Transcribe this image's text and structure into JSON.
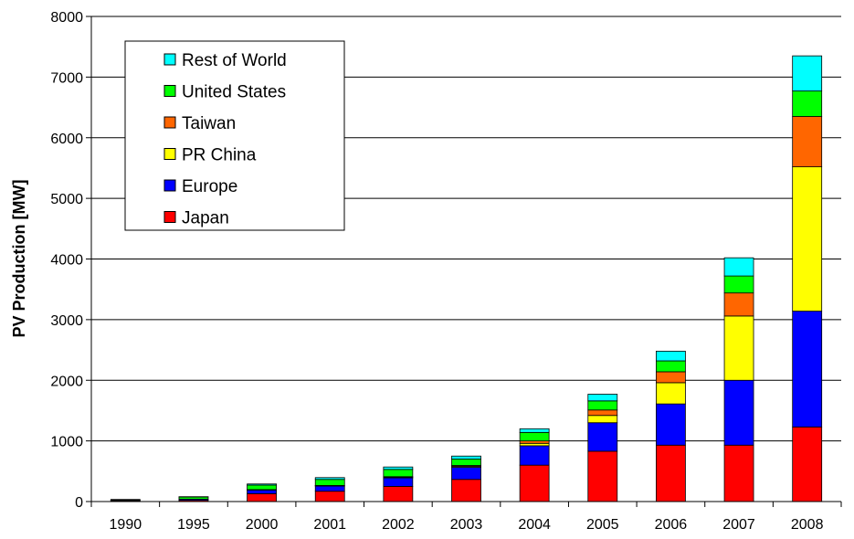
{
  "chart_data": {
    "type": "bar",
    "stacked": true,
    "title": "",
    "xlabel": "",
    "ylabel": "PV Production [MW]",
    "ylim": [
      0,
      8000
    ],
    "yticks": [
      0,
      1000,
      2000,
      3000,
      4000,
      5000,
      6000,
      7000,
      8000
    ],
    "grid": true,
    "legend_position": "top-left",
    "categories": [
      "1990",
      "1995",
      "2000",
      "2001",
      "2002",
      "2003",
      "2004",
      "2005",
      "2006",
      "2007",
      "2008"
    ],
    "series": [
      {
        "name": "Japan",
        "color": "#ff0000",
        "values": [
          15,
          20,
          130,
          170,
          250,
          365,
          600,
          830,
          930,
          930,
          1230
        ]
      },
      {
        "name": "Europe",
        "color": "#0000ff",
        "values": [
          10,
          20,
          60,
          85,
          140,
          200,
          320,
          470,
          680,
          1070,
          1910
        ]
      },
      {
        "name": "PR China",
        "color": "#ffff00",
        "values": [
          0,
          0,
          5,
          5,
          10,
          15,
          40,
          120,
          350,
          1060,
          2380
        ]
      },
      {
        "name": "Taiwan",
        "color": "#ff6600",
        "values": [
          0,
          0,
          2,
          5,
          10,
          15,
          40,
          90,
          180,
          380,
          830
        ]
      },
      {
        "name": "United States",
        "color": "#00ff00",
        "values": [
          10,
          35,
          75,
          100,
          120,
          105,
          140,
          150,
          180,
          280,
          420
        ]
      },
      {
        "name": "Rest of World",
        "color": "#00ffff",
        "values": [
          0,
          5,
          18,
          30,
          40,
          50,
          60,
          110,
          160,
          300,
          580
        ]
      }
    ]
  }
}
